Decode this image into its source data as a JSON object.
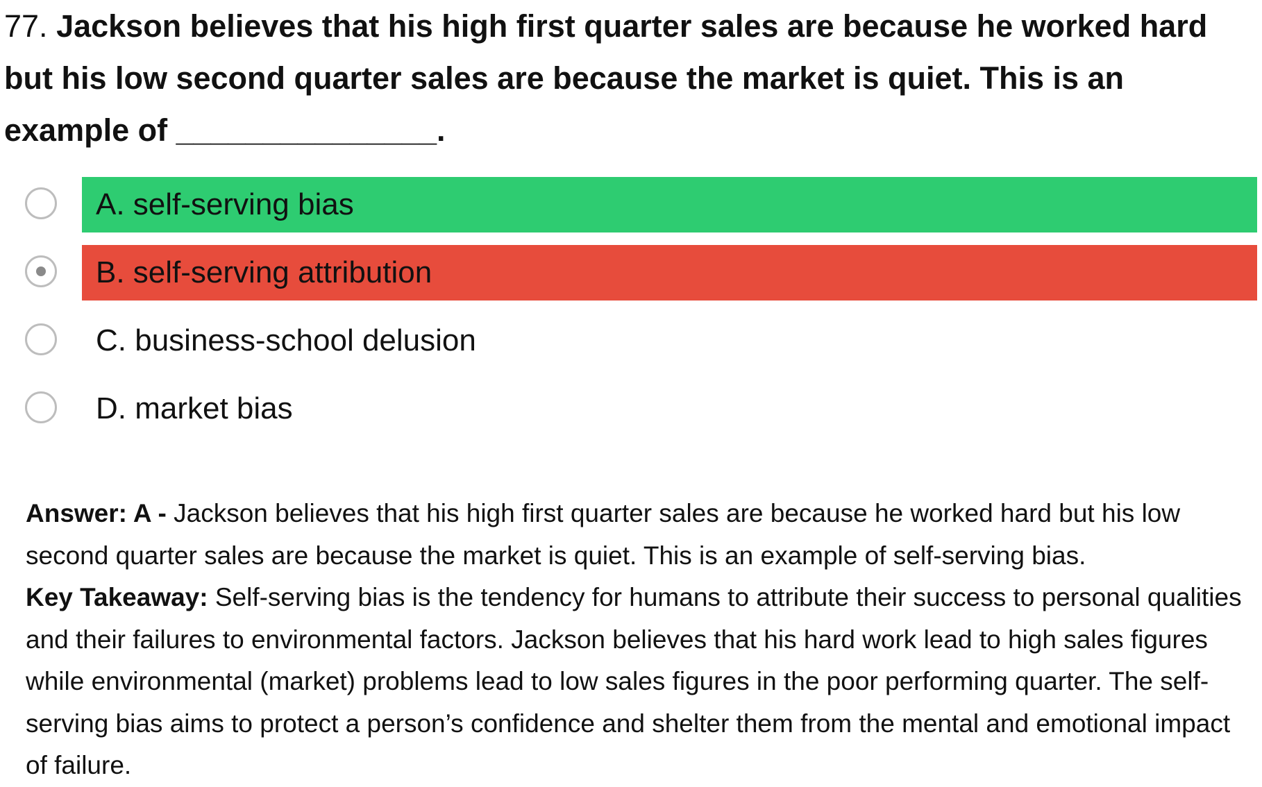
{
  "question": {
    "number": "77. ",
    "text": "Jackson believes that his high first quarter sales are because he worked hard but his low second quarter sales are because the market is quiet. This is an example of _______________."
  },
  "options": [
    {
      "label": "A. self-serving bias",
      "state": "correct",
      "selected": false
    },
    {
      "label": "B. self-serving attribution",
      "state": "wrong",
      "selected": true
    },
    {
      "label": "C. business-school delusion",
      "state": "none",
      "selected": false
    },
    {
      "label": "D. market bias",
      "state": "none",
      "selected": false
    }
  ],
  "colors": {
    "correct": "#2ecc71",
    "wrong": "#e74c3c"
  },
  "answer": {
    "heading": "Answer: A - ",
    "text": "Jackson believes that his high first quarter sales are because he worked hard but his low second quarter sales are because the market is quiet. This is an example of self-serving bias.",
    "takeaway_heading": "Key Takeaway: ",
    "takeaway_text": "Self-serving bias is the tendency for humans to attribute their success to personal qualities and their failures to environmental factors. Jackson believes that his hard work lead to high sales figures while environmental (market) problems lead to low sales figures in the poor performing quarter. The self-serving bias aims to protect a person’s confidence and shelter them from the mental and emotional impact of failure."
  }
}
